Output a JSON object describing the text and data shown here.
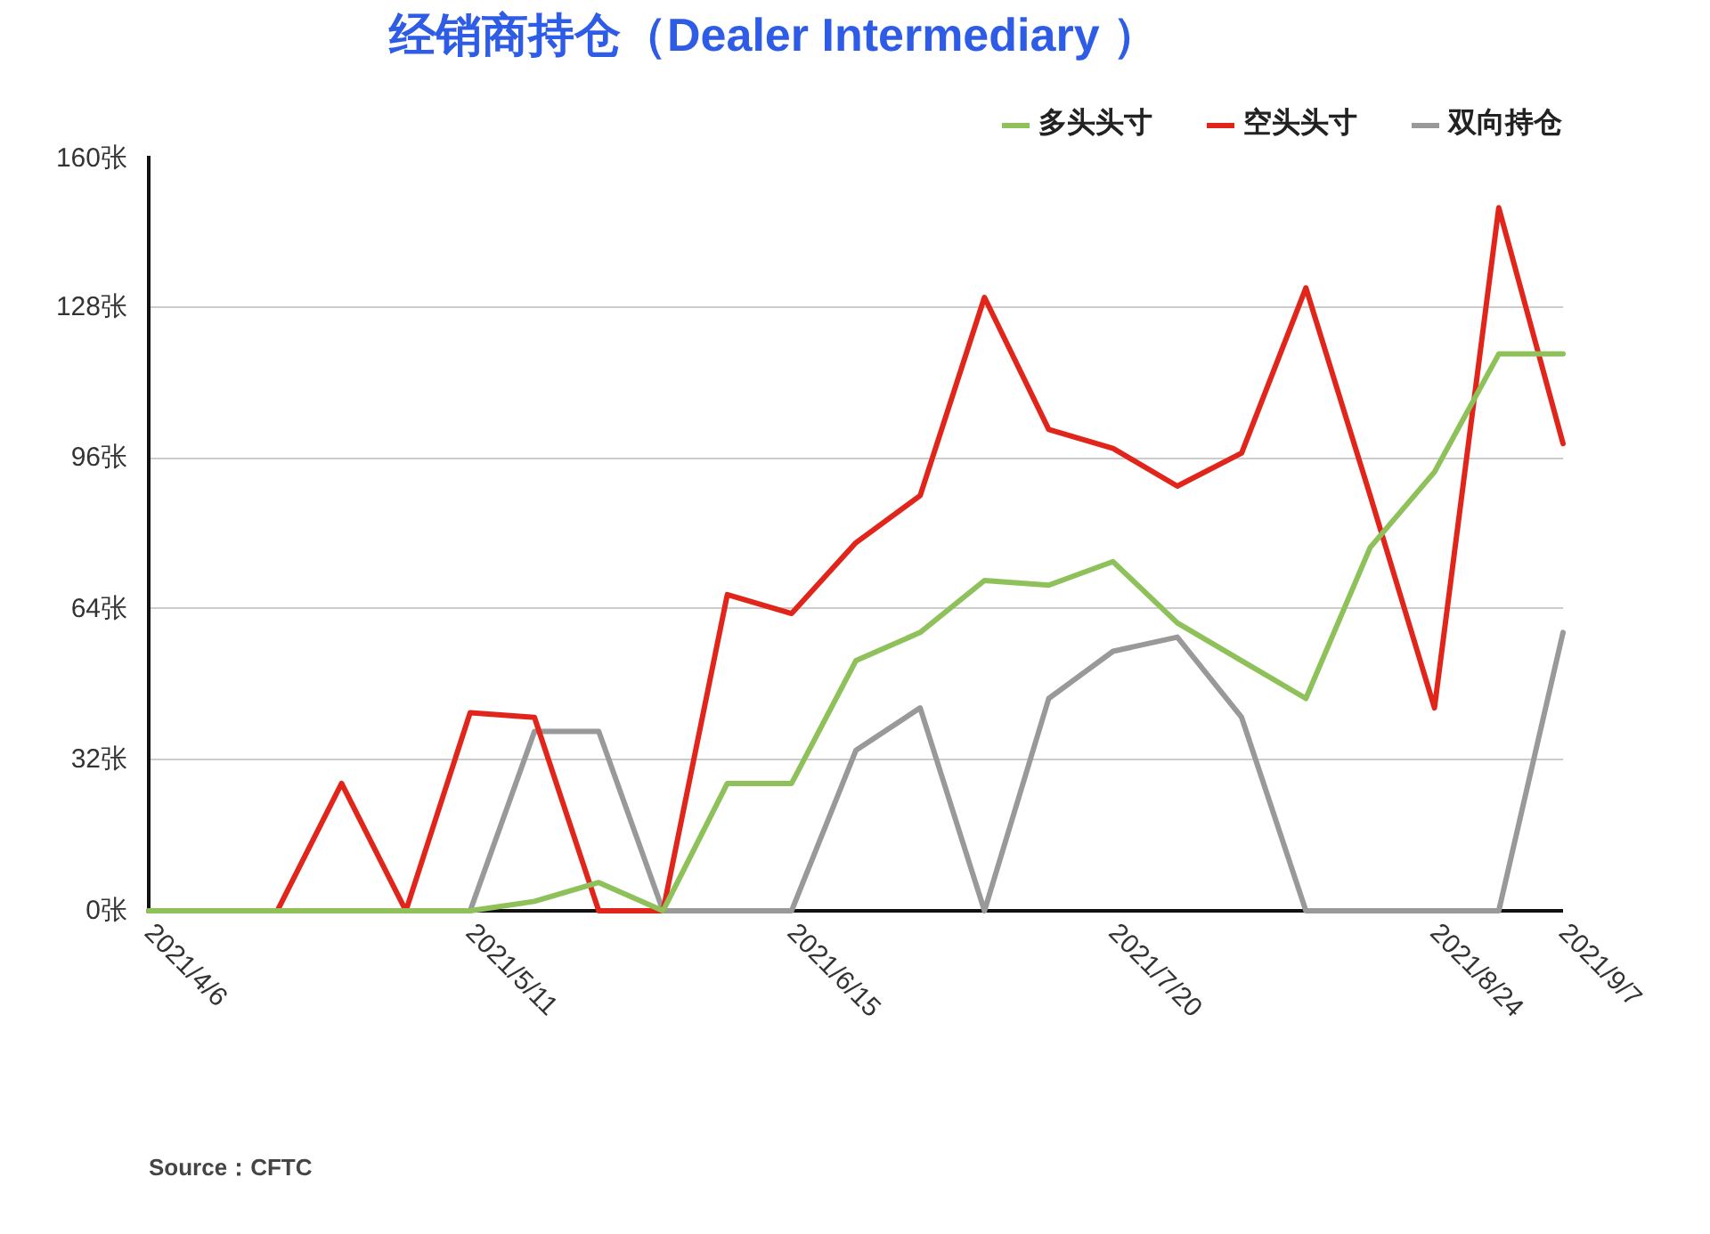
{
  "chart_data": {
    "type": "line",
    "title": "经销商持仓（Dealer Intermediary ）",
    "x": [
      "2021-04-06",
      "2021-04-13",
      "2021-04-20",
      "2021-04-27",
      "2021-05-04",
      "2021-05-11",
      "2021-05-18",
      "2021-05-25",
      "2021-06-01",
      "2021-06-08",
      "2021-06-15",
      "2021-06-22",
      "2021-06-29",
      "2021-07-06",
      "2021-07-13",
      "2021-07-20",
      "2021-07-27",
      "2021-08-03",
      "2021-08-10",
      "2021-08-17",
      "2021-08-24",
      "2021-08-31",
      "2021-09-07"
    ],
    "series": [
      {
        "name": "多头头寸",
        "color": "#8fc15a",
        "values": [
          0,
          0,
          0,
          0,
          0,
          0,
          2,
          6,
          0,
          27,
          27,
          53,
          59,
          70,
          69,
          74,
          61,
          53,
          45,
          77,
          93,
          118,
          118
        ]
      },
      {
        "name": "空头头寸",
        "color": "#e1251b",
        "values": [
          0,
          0,
          0,
          27,
          0,
          42,
          41,
          0,
          0,
          67,
          63,
          78,
          88,
          130,
          102,
          98,
          90,
          97,
          132,
          88,
          43,
          149,
          99
        ]
      },
      {
        "name": "双向持仓",
        "color": "#999999",
        "values": [
          0,
          0,
          0,
          0,
          0,
          0,
          38,
          38,
          0,
          0,
          0,
          34,
          43,
          0,
          45,
          55,
          58,
          41,
          0,
          0,
          0,
          0,
          59
        ]
      }
    ],
    "xlim": [
      "2021-04-06",
      "2021-09-07"
    ],
    "xticks": [
      {
        "value": "2021-04-06",
        "label": "2021/4/6"
      },
      {
        "value": "2021-05-11",
        "label": "2021/5/11"
      },
      {
        "value": "2021-06-15",
        "label": "2021/6/15"
      },
      {
        "value": "2021-07-20",
        "label": "2021/7/20"
      },
      {
        "value": "2021-08-24",
        "label": "2021/8/24"
      },
      {
        "value": "2021-09-07",
        "label": "2021/9/7"
      }
    ],
    "ylim": [
      0,
      160
    ],
    "yticks": [
      {
        "value": 0,
        "label": "0张"
      },
      {
        "value": 32,
        "label": "32张"
      },
      {
        "value": 64,
        "label": "64张"
      },
      {
        "value": 96,
        "label": "96张"
      },
      {
        "value": 128,
        "label": "128张"
      },
      {
        "value": 160,
        "label": "160张"
      }
    ],
    "grid": "y",
    "legend": "top right",
    "annotations": [
      "Source：CFTC"
    ]
  }
}
